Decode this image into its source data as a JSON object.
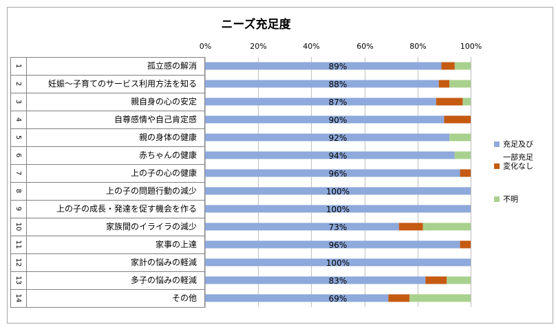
{
  "chart_data": {
    "type": "bar",
    "orientation": "horizontal",
    "stacked": "percent",
    "title": "ニーズ充足度",
    "xlim": [
      0,
      100
    ],
    "x_ticks": [
      "0%",
      "20%",
      "40%",
      "60%",
      "80%",
      "100%"
    ],
    "grid": true,
    "legend_position": "right",
    "row_numbers": [
      "1",
      "2",
      "3",
      "4",
      "5",
      "6",
      "7",
      "8",
      "9",
      "10",
      "11",
      "12",
      "13",
      "14"
    ],
    "categories": [
      "孤立感の解消",
      "妊娠～子育てのサービス利用方法を知る",
      "親自身の心の安定",
      "自尊感情や自己肯定感",
      "親の身体の健康",
      "赤ちゃんの健康",
      "上の子の心の健康",
      "上の子の問題行動の減少",
      "上の子の成長・発達を促す機会を作る",
      "家族間のイライラの減少",
      "家事の上達",
      "家計の悩みの軽減",
      "多子の悩みの軽減",
      "その他"
    ],
    "series": [
      {
        "name": "充足及び一部充足",
        "legend_lines": [
          "充足及び",
          "一部充足"
        ],
        "color": "#8EA9DB",
        "values": [
          89,
          88,
          87,
          90,
          92,
          94,
          96,
          100,
          100,
          73,
          96,
          100,
          83,
          69
        ],
        "labels": [
          "89%",
          "88%",
          "87%",
          "90%",
          "92%",
          "94%",
          "96%",
          "100%",
          "100%",
          "73%",
          "96%",
          "100%",
          "83%",
          "69%"
        ]
      },
      {
        "name": "変化なし",
        "legend_lines": [
          "変化なし"
        ],
        "color": "#C55A11",
        "values": [
          5,
          4,
          10,
          10,
          0,
          0,
          4,
          0,
          0,
          9,
          4,
          0,
          8,
          8
        ]
      },
      {
        "name": "不明",
        "legend_lines": [
          "不明"
        ],
        "color": "#A9D18E",
        "values": [
          6,
          8,
          3,
          0,
          8,
          6,
          0,
          0,
          0,
          18,
          0,
          0,
          9,
          23
        ]
      }
    ]
  }
}
